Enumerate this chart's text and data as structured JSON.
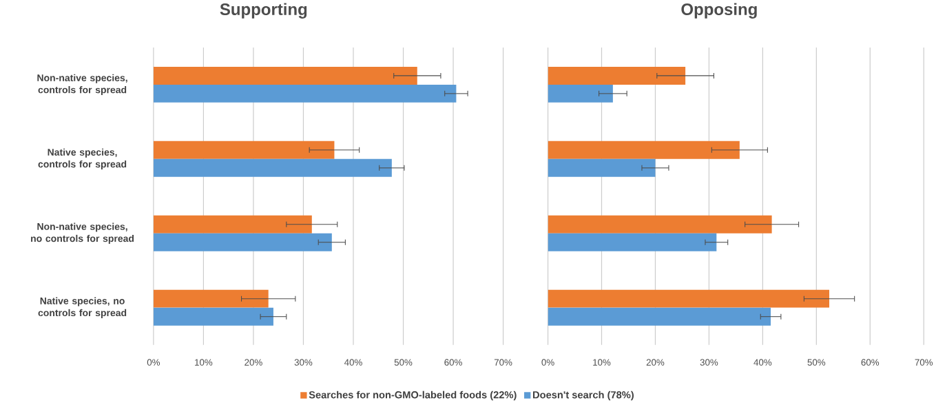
{
  "chart_data": [
    {
      "type": "bar",
      "orientation": "horizontal",
      "title": "Supporting",
      "categories": [
        "Non-native species, controls for spread",
        "Native species, controls for spread",
        "Non-native species, no controls for spread",
        "Native species, no controls for spread"
      ],
      "series": [
        {
          "name": "Searches for non-GMO-labeled foods  (22%)",
          "color": "#ed7d31",
          "values": [
            52.8,
            36.2,
            31.7,
            23.0
          ],
          "errors": [
            4.7,
            5.0,
            5.1,
            5.4
          ]
        },
        {
          "name": "Doesn't search  (78%)",
          "color": "#5b9bd5",
          "values": [
            60.6,
            47.7,
            35.7,
            24.0
          ],
          "errors": [
            2.3,
            2.5,
            2.7,
            2.6
          ]
        }
      ],
      "xlim": [
        0,
        70
      ],
      "xticks": [
        {
          "value": 0,
          "label": "0%"
        },
        {
          "value": 10,
          "label": "10%"
        },
        {
          "value": 20,
          "label": "20%"
        },
        {
          "value": 30,
          "label": "30%"
        },
        {
          "value": 40,
          "label": "40%"
        },
        {
          "value": 50,
          "label": "50%"
        },
        {
          "value": 60,
          "label": "60%"
        },
        {
          "value": 70,
          "label": "70%"
        }
      ],
      "grid": "x",
      "legend": "bottom"
    },
    {
      "type": "bar",
      "orientation": "horizontal",
      "title": "Opposing",
      "categories": [
        null,
        null,
        null,
        null
      ],
      "series": [
        {
          "color": "#ed7d31",
          "values": [
            25.6,
            35.7,
            41.7,
            52.4
          ],
          "errors": [
            5.3,
            5.2,
            5.0,
            4.7
          ]
        },
        {
          "color": "#5b9bd5",
          "values": [
            12.1,
            20.0,
            31.4,
            41.5
          ],
          "errors": [
            2.6,
            2.5,
            2.1,
            1.9
          ]
        }
      ],
      "xlim": [
        0,
        70
      ],
      "xticks": [
        {
          "value": 0,
          "label": "0%"
        },
        {
          "value": 10,
          "label": "10%"
        },
        {
          "value": 20,
          "label": "20%"
        },
        {
          "value": 30,
          "label": "30%"
        },
        {
          "value": 40,
          "label": "40%"
        },
        {
          "value": 50,
          "label": "50%"
        },
        {
          "value": 60,
          "label": "60%"
        },
        {
          "value": 70,
          "label": "70%"
        }
      ],
      "grid": "x",
      "tick_labels": "x"
    }
  ]
}
